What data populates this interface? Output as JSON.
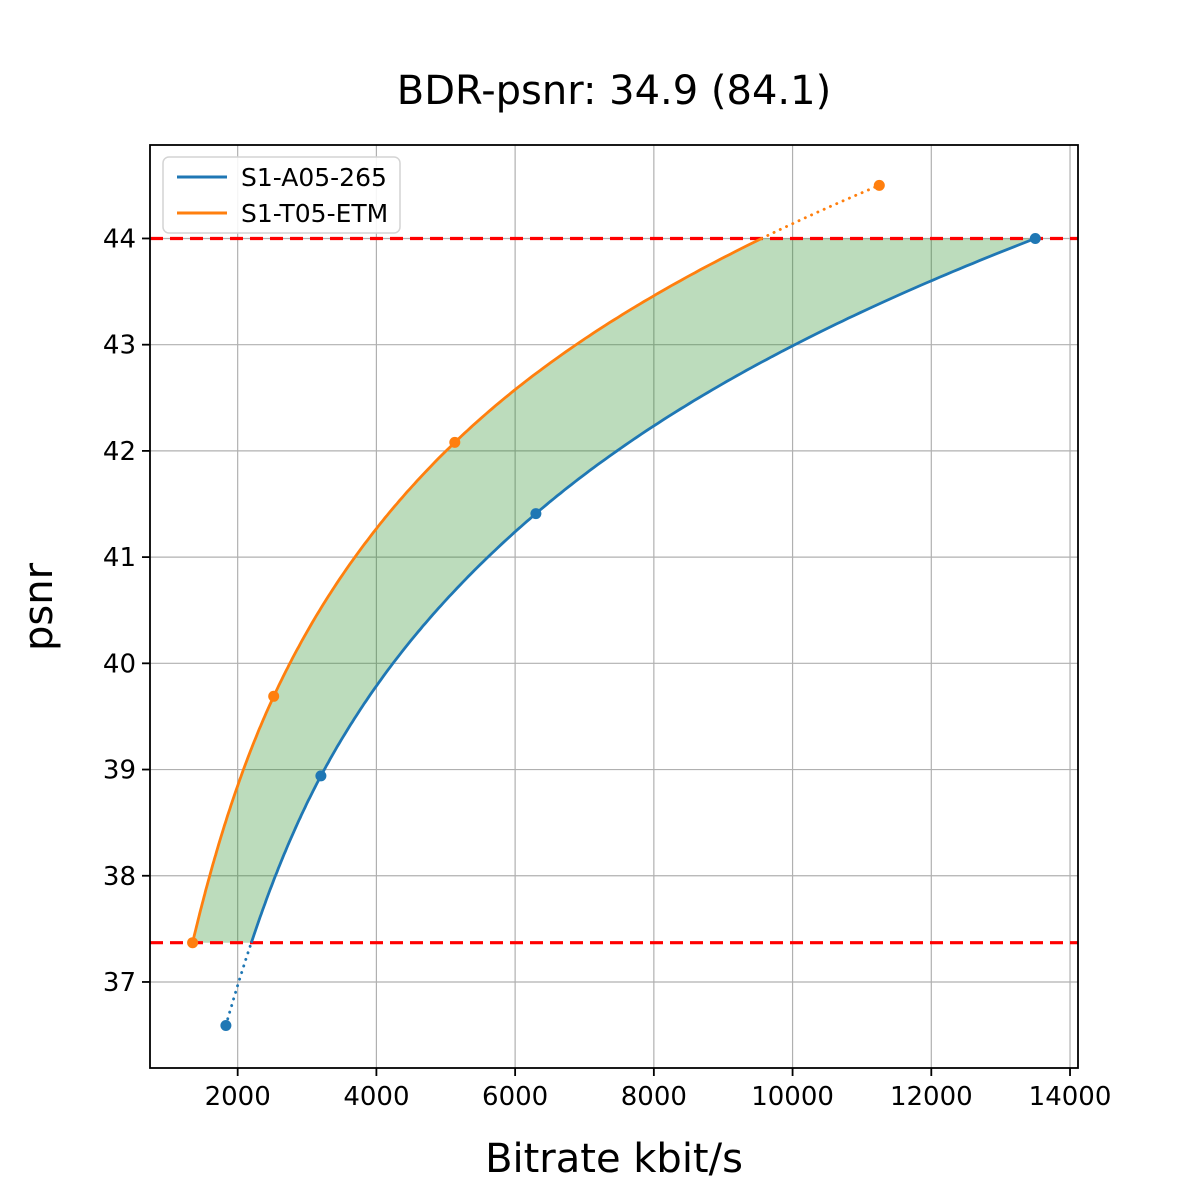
{
  "chart_data": {
    "type": "line",
    "title": "BDR-psnr: 34.9 (84.1)",
    "xlabel": "Bitrate kbit/s",
    "ylabel": "psnr",
    "xlim": [
      736,
      14115
    ],
    "ylim": [
      36.19,
      44.88
    ],
    "x_ticks": [
      2000,
      4000,
      6000,
      8000,
      10000,
      12000,
      14000
    ],
    "y_ticks": [
      37,
      38,
      39,
      40,
      41,
      42,
      43,
      44
    ],
    "grid": true,
    "legend_position": "upper left",
    "interpolation": "pchip-log-x",
    "series": [
      {
        "name": "S1-A05-265",
        "color": "#1f77b4",
        "x": [
          1830,
          3200,
          6300,
          13500
        ],
        "y": [
          36.59,
          38.94,
          41.41,
          44.0
        ]
      },
      {
        "name": "S1-T05-ETM",
        "color": "#ff7f0e",
        "x": [
          1350,
          2520,
          5130,
          11250
        ],
        "y": [
          37.37,
          39.69,
          42.08,
          44.5
        ]
      }
    ],
    "hlines": {
      "color": "#ff0000",
      "style": "dashed",
      "values": [
        37.37,
        44.0
      ],
      "note": "integration bounds: lower = min psnr of S1-T05-ETM, upper = max psnr of S1-A05-265"
    },
    "fill_between": {
      "color": "#228b22",
      "opacity": 0.3,
      "between": "clipped region between the two rate-distortion curves",
      "y_range": [
        37.37,
        44.0
      ]
    },
    "marker": {
      "shape": "circle",
      "radius": 5.5
    }
  }
}
